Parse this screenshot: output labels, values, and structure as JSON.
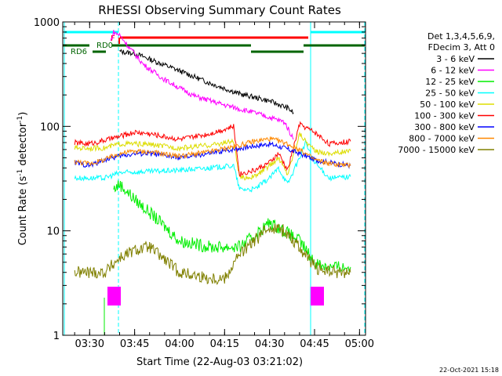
{
  "chart_data": {
    "type": "line",
    "title": "RHESSI Observing Summary Count Rates",
    "xlabel": "Start Time (22-Aug-03 03:21:02)",
    "ylabel": "Count Rate (s",
    "ylabel_sup1": "-1",
    "ylabel_mid": " detector",
    "ylabel_sup2": "-1",
    "ylabel_end": ")",
    "y_scale": "log",
    "ylim": [
      1,
      1000
    ],
    "xlim": [
      "03:21:02",
      "05:02:00"
    ],
    "x_ticks": [
      "03:30",
      "03:45",
      "04:00",
      "04:15",
      "04:30",
      "04:45",
      "05:00"
    ],
    "y_ticks": [
      "1",
      "10",
      "100",
      "1000"
    ],
    "legend_placement": "right",
    "legend_header": [
      "Det 1,3,4,5,6,9,",
      "FDecim 3, Att 0"
    ],
    "timestamp": "22-Oct-2021 15:18",
    "flag_labels": {
      "F": "F",
      "RD0": "RD0",
      "RD6": "RD6"
    },
    "series": [
      {
        "name": "3 - 6 keV",
        "color": "#000000",
        "x": [
          "03:38",
          "03:40",
          "03:45",
          "03:50",
          "04:00",
          "04:10",
          "04:20",
          "04:30",
          "04:36",
          "04:38",
          "04:40"
        ],
        "values": [
          null,
          520,
          500,
          440,
          340,
          260,
          205,
          175,
          150,
          135,
          null
        ]
      },
      {
        "name": "6 - 12 keV",
        "color": "#ff00ff",
        "x": [
          "03:37",
          "03:38",
          "03:40",
          "03:43",
          "03:48",
          "03:55",
          "04:05",
          "04:15",
          "04:25",
          "04:35",
          "04:38"
        ],
        "values": [
          650,
          800,
          750,
          580,
          390,
          280,
          195,
          160,
          135,
          110,
          75
        ]
      },
      {
        "name": "12 - 25 keV",
        "color": "#00ee00",
        "x": [
          "03:38",
          "03:40",
          "03:45",
          "03:50",
          "03:55",
          "04:00",
          "04:10",
          "04:20",
          "04:25",
          "04:30",
          "04:35",
          "04:40",
          "04:45",
          "04:50",
          "04:57"
        ],
        "values": [
          25,
          28,
          20,
          15,
          11,
          8,
          7,
          7,
          9,
          12,
          10,
          8,
          5,
          4.5,
          4.5
        ]
      },
      {
        "name": "25 - 50 keV",
        "color": "#00ffff",
        "x": [
          "03:25",
          "03:35",
          "03:40",
          "03:50",
          "04:00",
          "04:10",
          "04:18",
          "04:20",
          "04:25",
          "04:30",
          "04:33",
          "04:36",
          "04:40",
          "04:42",
          "04:45",
          "04:50",
          "04:57"
        ],
        "values": [
          32,
          32,
          36,
          37,
          38,
          40,
          42,
          25,
          25,
          32,
          40,
          28,
          50,
          70,
          45,
          32,
          33
        ]
      },
      {
        "name": "50 - 100 keV",
        "color": "#dddd00",
        "x": [
          "03:25",
          "03:35",
          "03:40",
          "03:45",
          "03:50",
          "04:00",
          "04:10",
          "04:18",
          "04:20",
          "04:25",
          "04:30",
          "04:33",
          "04:36",
          "04:40",
          "04:45",
          "04:50",
          "04:57"
        ],
        "values": [
          62,
          62,
          68,
          68,
          67,
          62,
          66,
          72,
          32,
          33,
          42,
          50,
          35,
          85,
          58,
          55,
          58
        ]
      },
      {
        "name": "100 - 300 keV",
        "color": "#ff0000",
        "x": [
          "03:25",
          "03:29",
          "03:32",
          "03:40",
          "03:45",
          "03:50",
          "04:00",
          "04:10",
          "04:18",
          "04:20",
          "04:25",
          "04:30",
          "04:33",
          "04:36",
          "04:40",
          "04:45",
          "04:50",
          "04:57"
        ],
        "values": [
          70,
          68,
          70,
          80,
          88,
          85,
          75,
          85,
          100,
          35,
          38,
          45,
          55,
          38,
          105,
          88,
          68,
          72
        ]
      },
      {
        "name": "300 - 800 keV",
        "color": "#0000ff",
        "x": [
          "03:25",
          "03:30",
          "03:35",
          "03:40",
          "03:45",
          "03:50",
          "04:00",
          "04:10",
          "04:20",
          "04:25",
          "04:30",
          "04:35",
          "04:40",
          "04:45",
          "04:50",
          "04:57"
        ],
        "values": [
          45,
          42,
          48,
          52,
          55,
          55,
          50,
          55,
          62,
          65,
          68,
          62,
          55,
          48,
          45,
          42
        ]
      },
      {
        "name": "800 - 7000 keV",
        "color": "#ff8800",
        "x": [
          "03:25",
          "03:30",
          "03:35",
          "03:40",
          "03:45",
          "03:50",
          "04:00",
          "04:10",
          "04:20",
          "04:25",
          "04:30",
          "04:35",
          "04:40",
          "04:45",
          "04:50",
          "04:57"
        ],
        "values": [
          46,
          44,
          48,
          55,
          58,
          57,
          52,
          57,
          66,
          72,
          76,
          70,
          60,
          48,
          44,
          42
        ]
      },
      {
        "name": "7000 - 15000 keV",
        "color": "#808000",
        "x": [
          "03:25",
          "03:35",
          "03:40",
          "03:45",
          "03:50",
          "04:00",
          "04:10",
          "04:15",
          "04:20",
          "04:25",
          "04:30",
          "04:35",
          "04:40",
          "04:45",
          "04:50",
          "04:57"
        ],
        "values": [
          4,
          4,
          5.5,
          6.5,
          7,
          4,
          3.5,
          3.5,
          6,
          8,
          11,
          10,
          7,
          4.5,
          4,
          4
        ]
      }
    ]
  }
}
